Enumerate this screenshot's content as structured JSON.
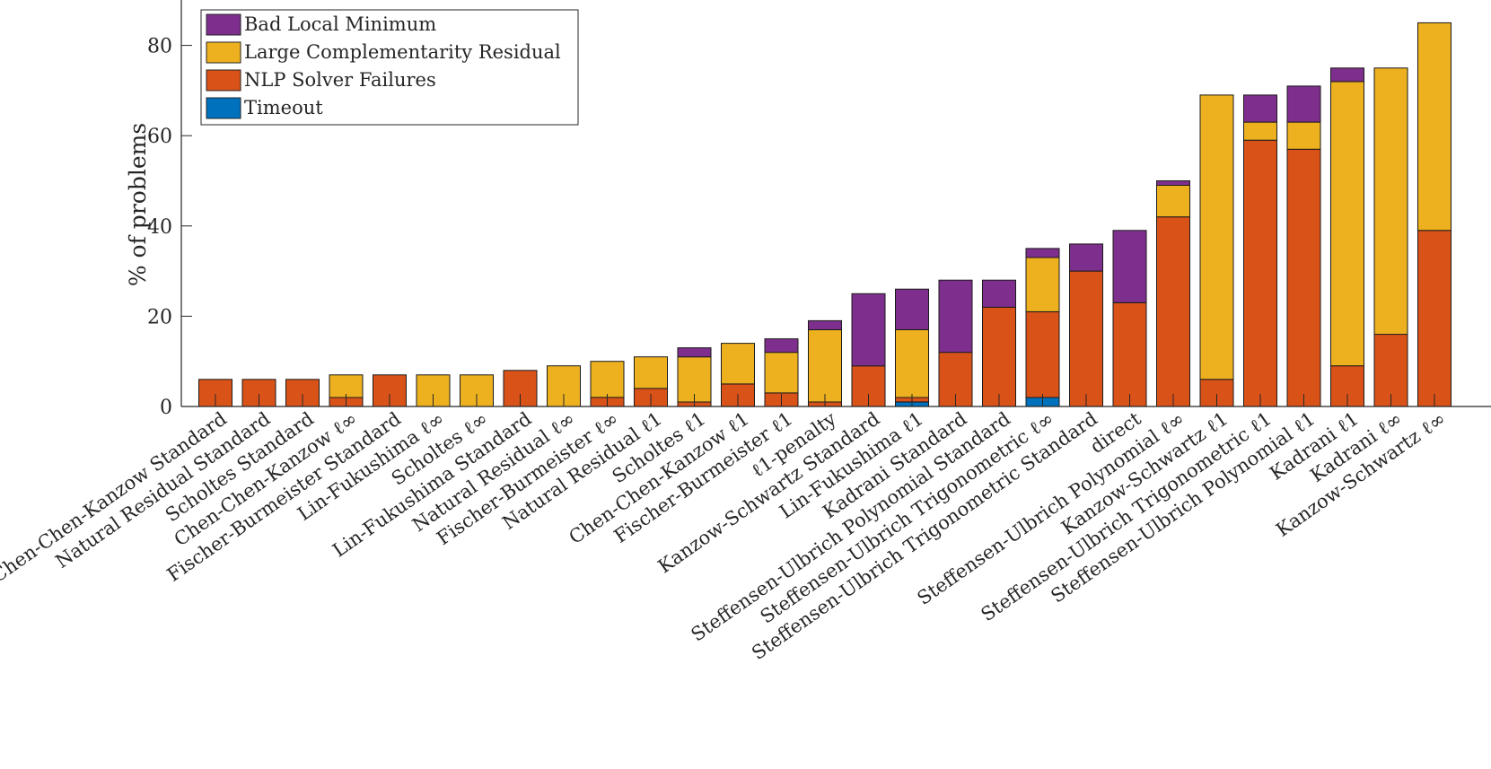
{
  "chart_data": {
    "type": "bar",
    "stacked": true,
    "ylabel": "% of problems",
    "xlabel": "",
    "ylim": [
      0,
      90
    ],
    "yticks": [
      0,
      20,
      40,
      60,
      80
    ],
    "grid": false,
    "legend_placement": "top-left",
    "categories": [
      "Chen-Chen-Kanzow Standard",
      "Natural Residual Standard",
      "Scholtes Standard",
      "Chen-Chen-Kanzow ℓ∞",
      "Fischer-Burmeister Standard",
      "Lin-Fukushima ℓ∞",
      "Scholtes ℓ∞",
      "Lin-Fukushima Standard",
      "Natural Residual ℓ∞",
      "Fischer-Burmeister ℓ∞",
      "Natural Residual ℓ1",
      "Scholtes ℓ1",
      "Chen-Chen-Kanzow ℓ1",
      "Fischer-Burmeister ℓ1",
      "ℓ1-penalty",
      "Kanzow-Schwartz Standard",
      "Lin-Fukushima ℓ1",
      "Kadrani Standard",
      "Steffensen-Ulbrich Polynomial Standard",
      "Steffensen-Ulbrich Trigonometric ℓ∞",
      "Steffensen-Ulbrich Trigonometric Standard",
      "direct",
      "Steffensen-Ulbrich Polynomial ℓ∞",
      "Kanzow-Schwartz ℓ1",
      "Steffensen-Ulbrich Trigonometric ℓ1",
      "Steffensen-Ulbrich Polynomial ℓ1",
      "Kadrani ℓ1",
      "Kadrani ℓ∞",
      "Kanzow-Schwartz ℓ∞"
    ],
    "series": [
      {
        "name": "Timeout",
        "color": "#0072BD",
        "values": [
          0,
          0,
          0,
          0,
          0,
          0,
          0,
          0,
          0,
          0,
          0,
          0,
          0,
          0,
          0,
          0,
          1,
          0,
          0,
          2,
          0,
          0,
          0,
          0,
          0,
          0,
          0,
          0,
          0
        ]
      },
      {
        "name": "NLP Solver Failures",
        "color": "#D95319",
        "values": [
          6,
          6,
          6,
          2,
          7,
          0,
          0,
          8,
          0,
          2,
          4,
          1,
          5,
          3,
          1,
          9,
          1,
          12,
          22,
          19,
          30,
          23,
          42,
          6,
          59,
          57,
          9,
          16,
          39
        ]
      },
      {
        "name": "Large Complementarity Residual",
        "color": "#EDB120",
        "values": [
          0,
          0,
          0,
          5,
          0,
          7,
          7,
          0,
          9,
          8,
          7,
          10,
          9,
          9,
          16,
          0,
          15,
          0,
          0,
          12,
          0,
          0,
          7,
          63,
          4,
          6,
          63,
          59,
          46
        ]
      },
      {
        "name": "Bad Local Minimum",
        "color": "#7E2F8E",
        "values": [
          0,
          0,
          0,
          0,
          0,
          0,
          0,
          0,
          0,
          0,
          0,
          2,
          0,
          3,
          2,
          16,
          9,
          16,
          6,
          2,
          6,
          16,
          1,
          0,
          6,
          8,
          3,
          0,
          0
        ]
      }
    ],
    "legend_order": [
      "Bad Local Minimum",
      "Large Complementarity Residual",
      "NLP Solver Failures",
      "Timeout"
    ]
  }
}
